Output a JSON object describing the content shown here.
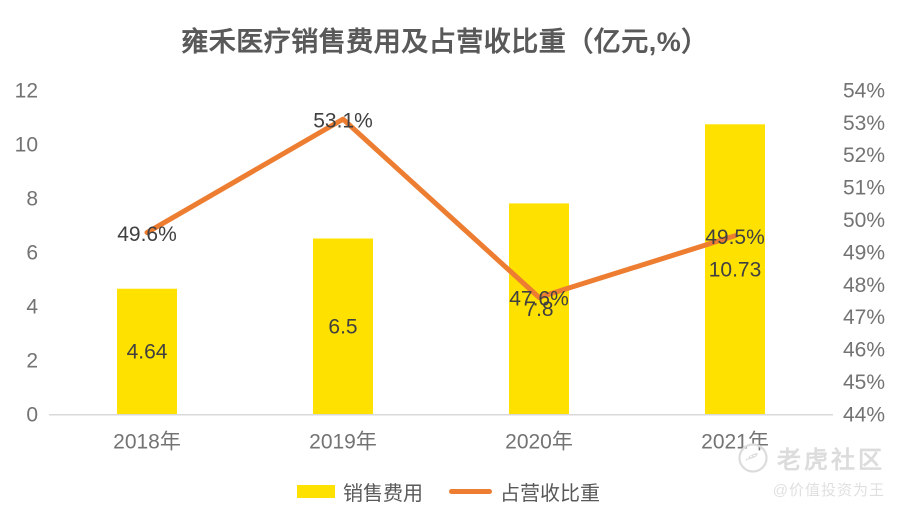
{
  "title": "雍禾医疗销售费用及占营收比重（亿元,%）",
  "chart_data": {
    "type": "bar+line combo",
    "categories": [
      "2018年",
      "2019年",
      "2020年",
      "2021年"
    ],
    "series": [
      {
        "name": "销售费用",
        "type": "bar",
        "axis": "left",
        "color": "#FFE100",
        "values": [
          4.64,
          6.5,
          7.8,
          10.73
        ],
        "labels": [
          "4.64",
          "6.5",
          "7.8",
          "10.73"
        ]
      },
      {
        "name": "占营收比重",
        "type": "line",
        "axis": "right",
        "color": "#ED7D31",
        "values": [
          49.6,
          53.1,
          47.6,
          49.5
        ],
        "labels": [
          "49.6%",
          "53.1%",
          "47.6%",
          "49.5%"
        ]
      }
    ],
    "y_left": {
      "min": 0,
      "max": 12,
      "step": 2,
      "tick_labels": [
        "0",
        "2",
        "4",
        "6",
        "8",
        "10",
        "12"
      ]
    },
    "y_right": {
      "min": 44,
      "max": 54,
      "step": 1,
      "tick_labels": [
        "44%",
        "45%",
        "46%",
        "47%",
        "48%",
        "49%",
        "50%",
        "51%",
        "52%",
        "53%",
        "54%"
      ]
    },
    "grid": "off",
    "legend_position": "bottom"
  },
  "watermark": {
    "community": "老虎社区",
    "author": "@价值投资为王"
  },
  "colors": {
    "bar": "#FFE100",
    "line": "#ED7D31",
    "axis_line": "#D9D9D9",
    "tick_text": "#737373",
    "data_label": "#404040",
    "title_text": "#595959",
    "watermark": "#DCDCDC"
  }
}
